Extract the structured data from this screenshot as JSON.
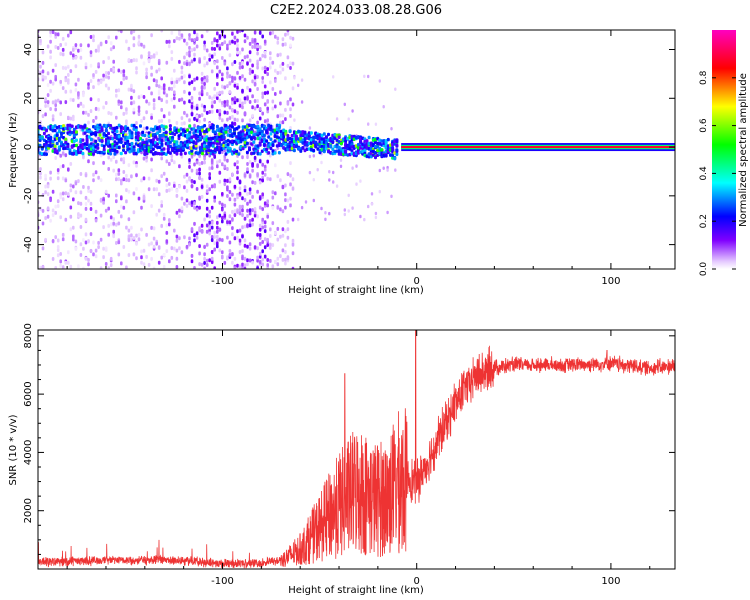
{
  "title": "C2E2.2024.033.08.28.G06",
  "chart_data": [
    {
      "type": "heatmap",
      "xlabel": "Height of straight line (km)",
      "ylabel": "Frequency (Hz)",
      "xlim": [
        -195,
        133
      ],
      "ylim": [
        -50,
        48
      ],
      "x_ticks": [
        -100,
        0,
        100
      ],
      "y_ticks": [
        -40,
        -20,
        0,
        20,
        40
      ],
      "colorbar": {
        "label": "Normalized spectral amplitude",
        "range": [
          0,
          1
        ],
        "ticks": [
          "0.0",
          "0.2",
          "0.4",
          "0.6",
          "0.8"
        ],
        "stops": [
          "#ffffff",
          "#8000ff",
          "#0000ff",
          "#00ffff",
          "#00ff00",
          "#ffff00",
          "#ff0000",
          "#ff00c0"
        ]
      },
      "features": {
        "scatter_region_km": [
          -195,
          -63
        ],
        "dense_band_km": [
          -118,
          -76
        ],
        "carrier_line_start_km": -8,
        "carrier_frequency_hz": 0,
        "center_band_width_hz": 6,
        "drift_end_km": -20
      }
    },
    {
      "type": "line",
      "xlabel": "Height of straight line (km)",
      "ylabel": "SNR (10 * v/v)",
      "xlim": [
        -195,
        133
      ],
      "ylim": [
        0,
        8200
      ],
      "x_ticks": [
        -100,
        0,
        100
      ],
      "y_ticks": [
        2000,
        4000,
        6000,
        8000
      ],
      "color": "#ee3333",
      "series": [
        {
          "profile_x": [
            -195,
            -160,
            -120,
            -100,
            -80,
            -70,
            -60,
            -50,
            -40,
            -30,
            -22,
            -15,
            -10,
            -5,
            0,
            5,
            10,
            15,
            20,
            25,
            30,
            40,
            50,
            60,
            80,
            100,
            120,
            133
          ],
          "profile_y": [
            230,
            300,
            300,
            180,
            200,
            300,
            700,
            1500,
            2300,
            2900,
            2500,
            2600,
            3100,
            3200,
            2900,
            3600,
            4300,
            5000,
            5700,
            6200,
            6600,
            6900,
            7000,
            7000,
            7000,
            7050,
            6900,
            6950
          ]
        }
      ],
      "peaks": [
        {
          "x": -0.5,
          "y": 8200
        },
        {
          "x": -37,
          "y": 6700
        },
        {
          "x": 98,
          "y": 7500
        }
      ]
    }
  ]
}
